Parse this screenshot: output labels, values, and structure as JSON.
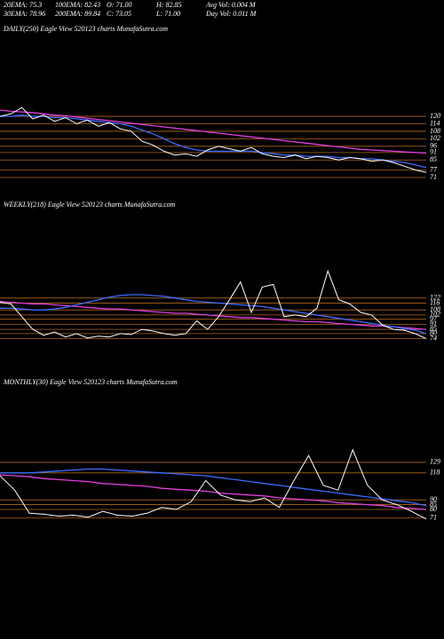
{
  "header": {
    "items": [
      [
        "20EMA: 75.3",
        "100EMA: 82.43",
        "O: 71.00",
        "H: 82.85",
        "Avg Vol: 0.004 M"
      ],
      [
        "30EMA: 78.96",
        "200EMA: 89.84",
        "C: 73.05",
        "L: 71.00",
        "Day Vol: 0.011 M"
      ]
    ]
  },
  "chart_data": [
    {
      "type": "line",
      "title": "DAILY(250) Eagle  View  520123 charts MunafaSutra.com",
      "ylim": [
        66,
        130
      ],
      "yticks": [
        120,
        114,
        108,
        102,
        96,
        91,
        85,
        77,
        71
      ],
      "grid": true,
      "grid_color": "#b0661c",
      "series": [
        {
          "color": "#e23ee0",
          "values": [
            125,
            124,
            123.5,
            123,
            122,
            121,
            120.5,
            119.5,
            118.5,
            117.5,
            116.5,
            115.5,
            114.5,
            113.5,
            112.5,
            111.5,
            110.5,
            109.5,
            108.5,
            107.5,
            106.5,
            105.5,
            104.5,
            103.5,
            102.5,
            101.5,
            100.5,
            99.5,
            98.5,
            97.5,
            96.5,
            95.5,
            94.5,
            93.5,
            93,
            92.5,
            92,
            91.5,
            91,
            90.5
          ]
        },
        {
          "color": "#3c6cff",
          "values": [
            120,
            120,
            121,
            120,
            120,
            119,
            119,
            118,
            117,
            116,
            115,
            114,
            112,
            109,
            106,
            102,
            98,
            95,
            93,
            92,
            92,
            92,
            92,
            92,
            91,
            90,
            89,
            89,
            88,
            88,
            88,
            87,
            87,
            86,
            86,
            85,
            84,
            83,
            81,
            79
          ]
        },
        {
          "color": "#ffffff",
          "values": [
            120,
            122,
            127,
            118,
            121,
            116,
            119,
            114,
            117,
            112,
            115,
            110,
            108,
            100,
            97,
            92,
            89,
            90,
            88,
            93,
            96,
            94,
            92,
            95,
            90,
            88,
            87,
            89,
            86,
            88,
            87,
            85,
            87,
            86,
            84,
            85,
            83,
            80,
            77,
            75
          ]
        }
      ]
    },
    {
      "type": "line",
      "title": "WEEKLY(218) Eagle  View  520123 charts MunafaSutra.com",
      "ylim": [
        60,
        170
      ],
      "yticks": [
        122,
        116,
        108,
        102,
        97,
        91,
        85,
        80,
        74
      ],
      "grid": true,
      "grid_color": "#b0661c",
      "series": [
        {
          "color": "#e23ee0",
          "values": [
            118,
            117,
            116,
            115,
            115,
            114,
            113,
            112,
            111,
            110,
            109,
            109,
            108,
            107,
            106,
            105,
            104,
            104,
            103,
            102,
            101,
            100,
            99,
            99,
            98,
            97,
            96,
            95,
            94,
            94,
            93,
            92,
            91,
            90,
            89,
            89,
            88,
            87,
            86,
            85
          ]
        },
        {
          "color": "#3c6cff",
          "values": [
            110,
            110,
            109,
            108,
            108,
            109,
            111,
            114,
            117,
            120,
            123,
            125,
            126,
            126,
            125,
            124,
            122,
            120,
            118,
            117,
            116,
            115,
            114,
            113,
            112,
            110,
            108,
            106,
            104,
            102,
            100,
            98,
            96,
            94,
            92,
            90,
            88,
            86,
            84,
            80
          ]
        },
        {
          "color": "#ffffff",
          "values": [
            117,
            115,
            100,
            85,
            78,
            82,
            76,
            80,
            75,
            77,
            76,
            80,
            79,
            85,
            83,
            80,
            78,
            80,
            95,
            85,
            100,
            120,
            141,
            105,
            135,
            138,
            100,
            102,
            100,
            110,
            154,
            120,
            115,
            105,
            102,
            90,
            85,
            84,
            80,
            74
          ]
        }
      ]
    },
    {
      "type": "line",
      "title": "MONTHLY(30) Eagle  View  520123 charts MunafaSutra.com",
      "ylim": [
        56,
        176
      ],
      "yticks": [
        129,
        118,
        90,
        85,
        80,
        71
      ],
      "grid": true,
      "grid_color": "#b0661c",
      "series": [
        {
          "color": "#e23ee0",
          "values": [
            116,
            115,
            114,
            112,
            111,
            110,
            109,
            107,
            106,
            105,
            104,
            102,
            101,
            100,
            99,
            97,
            96,
            95,
            94,
            92,
            91,
            90,
            89,
            87,
            86,
            85,
            84,
            82,
            81,
            80
          ]
        },
        {
          "color": "#3c6cff",
          "values": [
            118,
            118,
            118,
            119,
            120,
            121,
            122,
            122,
            121,
            120,
            119,
            118,
            117,
            116,
            115,
            113,
            111,
            109,
            107,
            105,
            103,
            101,
            99,
            97,
            95,
            93,
            91,
            89,
            87,
            84
          ]
        },
        {
          "color": "#ffffff",
          "values": [
            115,
            100,
            76,
            75,
            73,
            74,
            72,
            78,
            74,
            73,
            76,
            82,
            80,
            88,
            110,
            95,
            90,
            88,
            92,
            82,
            110,
            136,
            105,
            100,
            142,
            105,
            90,
            85,
            78,
            70
          ]
        }
      ]
    }
  ]
}
